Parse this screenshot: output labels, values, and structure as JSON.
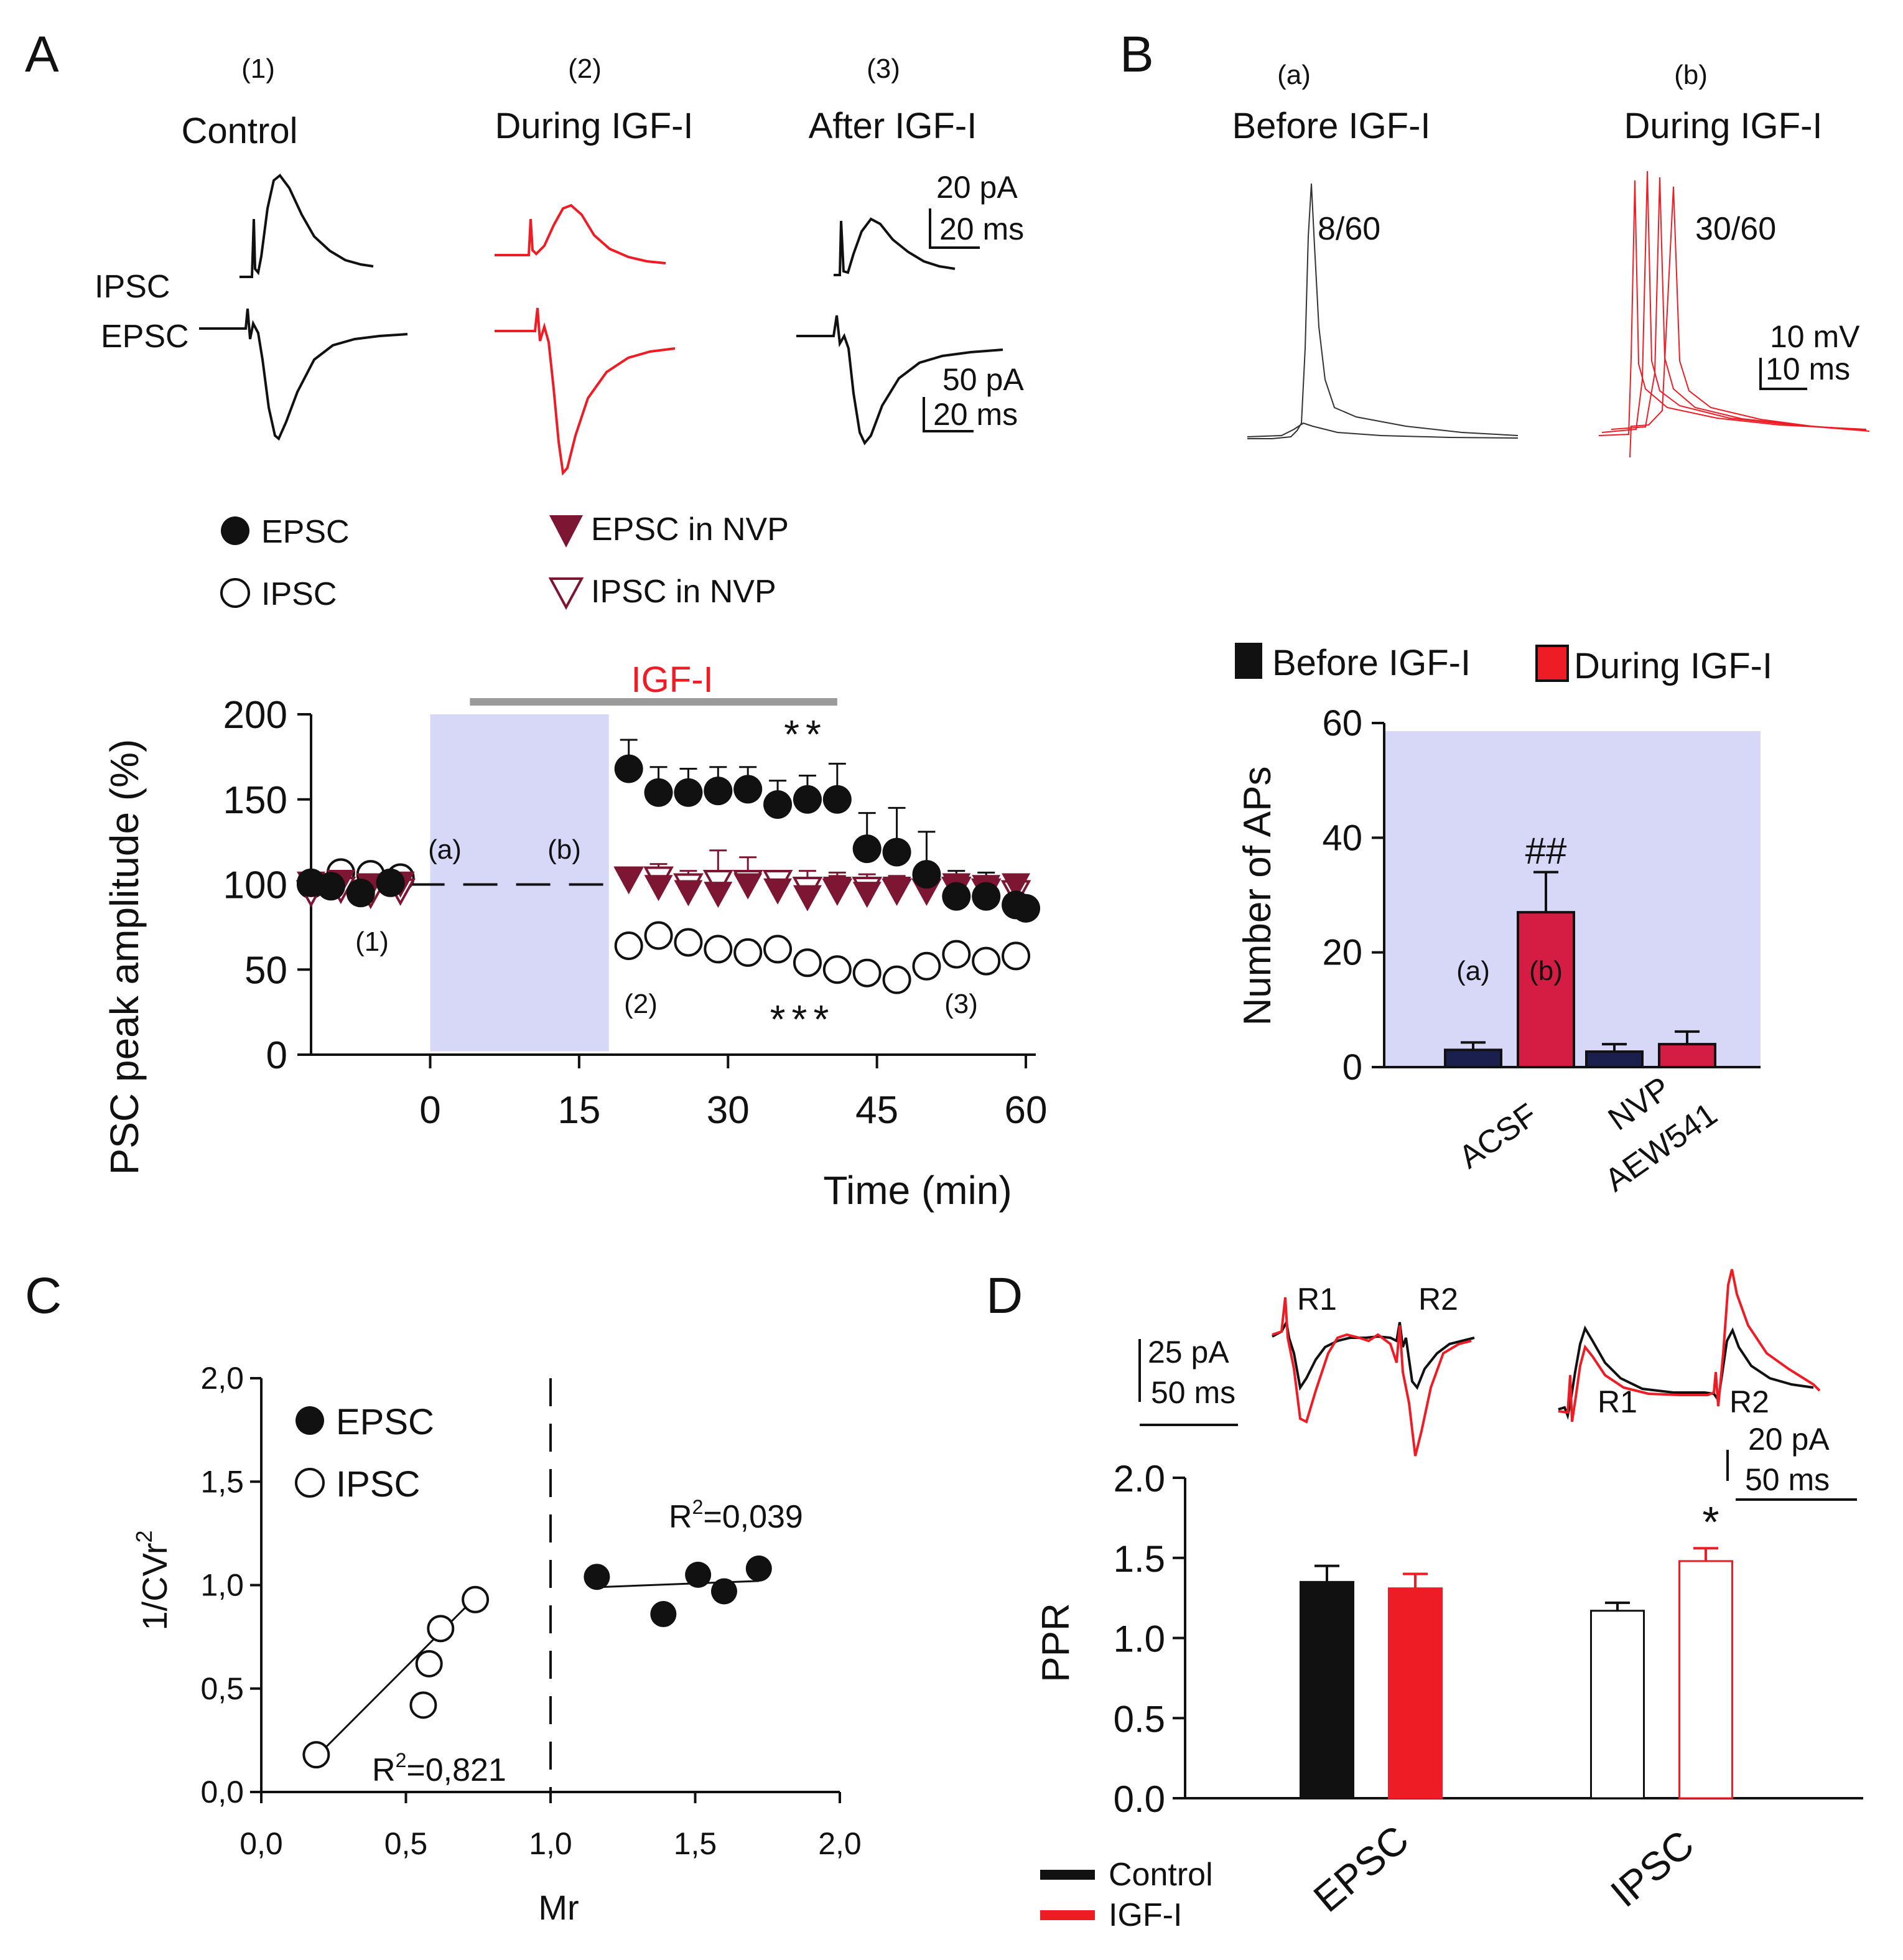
{
  "panels": {
    "A": "A",
    "B": "B",
    "C": "C",
    "D": "D"
  },
  "colors": {
    "control": "#111111",
    "igf": "#ee1c24",
    "shade": "#d7d8f8",
    "navy": "#1b1f4d",
    "crimson": "#d51d44",
    "maroon": "#7d1633",
    "grey": "#9a9a9a"
  },
  "panelA": {
    "traces": {
      "c1_num": "(1)",
      "c1_title": "Control",
      "c2_num": "(2)",
      "c2_title": "During IGF-I",
      "c3_num": "(3)",
      "c3_title": "After IGF-I",
      "ipsc_label": "IPSC",
      "epsc_label": "EPSC",
      "scale1_amp": "20 pA",
      "scale1_time": "20 ms",
      "scale2_amp": "50 pA",
      "scale2_time": "20 ms"
    },
    "legend": {
      "epsc": "EPSC",
      "ipsc": "IPSC",
      "epsc_nvp": "EPSC in NVP",
      "ipsc_nvp": "IPSC in NVP"
    }
  },
  "panelB": {
    "traces": {
      "a_num": "(a)",
      "a_title": "Before IGF-I",
      "a_count": "8/60",
      "b_num": "(b)",
      "b_title": "During IGF-I",
      "b_count": "30/60",
      "scale_amp": "10 mV",
      "scale_time": "10 ms"
    }
  },
  "panelD": {
    "traces": {
      "r1": "R1",
      "r2": "R2",
      "epsc_scale_amp": "25 pA",
      "epsc_scale_time": "50 ms",
      "ipsc_scale_amp": "20 pA",
      "ipsc_scale_time": "50 ms"
    }
  },
  "chart_data": [
    {
      "id": "A-timecourse",
      "type": "scatter",
      "title": "",
      "bar_label": "IGF-I",
      "ylabel": "PSC peak amplitude (%)",
      "xlabel": "Time (min)",
      "xlim": [
        -12,
        61
      ],
      "ylim": [
        0,
        200
      ],
      "xticks": [
        0,
        15,
        30,
        45,
        60
      ],
      "yticks": [
        0,
        50,
        100,
        150,
        200
      ],
      "igf_bar": [
        4,
        41
      ],
      "shaded_region": [
        0,
        18
      ],
      "baseline": 100,
      "annotations": [
        "(a)",
        "(b)",
        "(1)",
        "(2)",
        "(3)",
        "**",
        "***"
      ],
      "series": [
        {
          "name": "EPSC",
          "marker": "filled-circle",
          "x": [
            -12,
            -10,
            -7,
            -4,
            20,
            23,
            26,
            29,
            32,
            35,
            38,
            41,
            44,
            47,
            50,
            53,
            56,
            59,
            60
          ],
          "y": [
            101,
            99,
            95,
            101,
            168,
            154,
            154,
            155,
            156,
            147,
            150,
            150,
            121,
            119,
            106,
            93,
            93,
            88,
            86
          ],
          "err": [
            0,
            0,
            0,
            0,
            17,
            15,
            14,
            14,
            13,
            14,
            14,
            21,
            21,
            26,
            25,
            15,
            14,
            8,
            0
          ]
        },
        {
          "name": "IPSC",
          "marker": "open-circle",
          "x": [
            -12,
            -9,
            -6,
            -3,
            20,
            23,
            26,
            29,
            32,
            35,
            38,
            41,
            44,
            47,
            50,
            53,
            56,
            59
          ],
          "y": [
            100,
            107,
            106,
            104,
            64,
            70,
            66,
            62,
            60,
            62,
            54,
            50,
            48,
            44,
            52,
            59,
            55,
            58
          ],
          "err": [
            0,
            0,
            0,
            0,
            0,
            0,
            0,
            0,
            0,
            0,
            0,
            0,
            0,
            0,
            0,
            0,
            0,
            0
          ]
        },
        {
          "name": "EPSC in NVP",
          "marker": "filled-triangle-down",
          "x": [
            -12,
            -9,
            -6,
            -3,
            20,
            23,
            26,
            29,
            32,
            35,
            38,
            41,
            44,
            47,
            50,
            53,
            56,
            59
          ],
          "y": [
            101,
            102,
            100,
            101,
            103,
            99,
            96,
            95,
            100,
            97,
            93,
            98,
            95,
            98,
            98,
            100,
            99,
            100
          ],
          "err": [
            0,
            0,
            0,
            0,
            0,
            8,
            8,
            8,
            7,
            8,
            10,
            7,
            8,
            7,
            7,
            0,
            0,
            0
          ]
        },
        {
          "name": "IPSC in NVP",
          "marker": "open-triangle-down",
          "x": [
            -12,
            -9,
            -6,
            -3,
            20,
            23,
            26,
            29,
            32,
            35,
            38,
            41,
            44,
            47,
            50,
            53,
            56,
            59
          ],
          "y": [
            96,
            98,
            95,
            97,
            104,
            104,
            100,
            102,
            102,
            102,
            98,
            97,
            98,
            97,
            97,
            98,
            97,
            96
          ],
          "err": [
            0,
            0,
            0,
            0,
            0,
            8,
            8,
            18,
            14,
            0,
            10,
            10,
            8,
            8,
            7,
            0,
            0,
            0
          ]
        }
      ]
    },
    {
      "id": "B-bars",
      "type": "bar",
      "title": "",
      "ylabel": "Number of APs",
      "ylim": [
        0,
        60
      ],
      "yticks": [
        0,
        20,
        40,
        60
      ],
      "categories": [
        "ACSF",
        "NVP AEW541"
      ],
      "category_lines": [
        [
          "ACSF"
        ],
        [
          "NVP",
          "AEW541"
        ]
      ],
      "series": [
        {
          "name": "Before IGF-I",
          "values": [
            3,
            2.7
          ],
          "err": [
            1.3,
            1.3
          ],
          "labels": [
            "(a)",
            ""
          ]
        },
        {
          "name": "During IGF-I",
          "values": [
            27,
            4
          ],
          "err": [
            7,
            2.2
          ],
          "labels": [
            "(b)",
            ""
          ]
        }
      ],
      "annotations": [
        "##"
      ]
    },
    {
      "id": "C-scatter",
      "type": "scatter",
      "title": "",
      "xlabel": "Mr",
      "ylabel": "1/CVr2",
      "ylabel_main": "1/CVr",
      "ylabel_sup": "2",
      "xlim": [
        0,
        2
      ],
      "ylim": [
        0,
        2
      ],
      "xticks": [
        "0,0",
        "0,5",
        "1,0",
        "1,5",
        "2,0"
      ],
      "yticks": [
        "0,0",
        "0,5",
        "1,0",
        "1,5",
        "2,0"
      ],
      "vline": 1.0,
      "series": [
        {
          "name": "EPSC",
          "marker": "filled-circle",
          "x": [
            1.16,
            1.39,
            1.51,
            1.6,
            1.72
          ],
          "y": [
            1.04,
            0.86,
            1.05,
            0.97,
            1.08
          ],
          "fit": [
            [
              1.16,
              0.99
            ],
            [
              1.72,
              1.02
            ]
          ],
          "r2_label": "R2=0,039",
          "r2_main": "R",
          "r2_sup": "2",
          "r2_value": "=0,039"
        },
        {
          "name": "IPSC",
          "marker": "open-circle",
          "x": [
            0.19,
            0.56,
            0.58,
            0.62,
            0.74
          ],
          "y": [
            0.18,
            0.42,
            0.62,
            0.79,
            0.93
          ],
          "fit": [
            [
              0.19,
              0.17
            ],
            [
              0.74,
              0.94
            ]
          ],
          "r2_label": "R2=0,821",
          "r2_main": "R",
          "r2_sup": "2",
          "r2_value": "=0,821"
        }
      ]
    },
    {
      "id": "D-ppr",
      "type": "bar",
      "title": "",
      "ylabel": "PPR",
      "ylim": [
        0,
        2
      ],
      "yticks": [
        "0.0",
        "0.5",
        "1.0",
        "1.5",
        "2.0"
      ],
      "categories": [
        "EPSC",
        "IPSC"
      ],
      "series": [
        {
          "name": "Control",
          "values": [
            1.35,
            1.17
          ],
          "err": [
            0.1,
            0.05
          ]
        },
        {
          "name": "IGF-I",
          "values": [
            1.31,
            1.48
          ],
          "err": [
            0.09,
            0.08
          ]
        }
      ],
      "annotations": [
        "*"
      ]
    }
  ]
}
